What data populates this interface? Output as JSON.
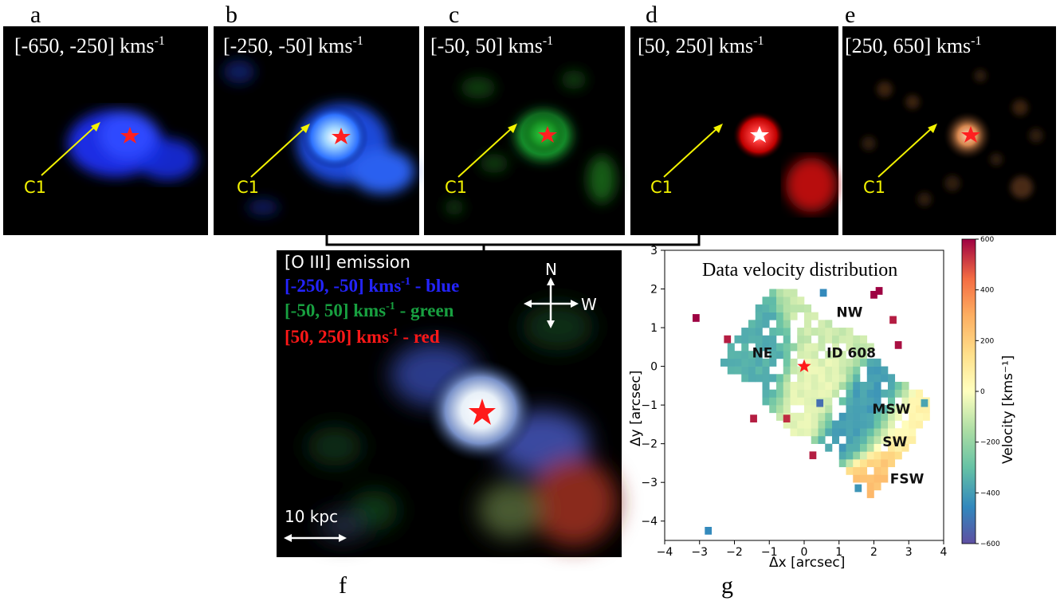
{
  "panels": [
    {
      "letter": "a",
      "range": "[-650, -250] kms",
      "unit_exp": "-1",
      "arrow_label": "C1",
      "color": "#1428ff"
    },
    {
      "letter": "b",
      "range": "[-250, -50] kms",
      "unit_exp": "-1",
      "arrow_label": "C1",
      "color": "#2a6cff"
    },
    {
      "letter": "c",
      "range": "[-50, 50] kms",
      "unit_exp": "-1",
      "arrow_label": "C1",
      "color": "#22b83a"
    },
    {
      "letter": "d",
      "range": "[50, 250] kms",
      "unit_exp": "-1",
      "arrow_label": "C1",
      "color": "#e81414"
    },
    {
      "letter": "e",
      "range": "[250, 650] kms",
      "unit_exp": "-1",
      "arrow_label": "C1",
      "color": "#d88850"
    }
  ],
  "composite": {
    "letter": "f",
    "title": "[O III] emission",
    "legend": [
      {
        "range": "[-250, -50] kms",
        "exp": "-1",
        "suffix": " - blue",
        "color": "#2424ff"
      },
      {
        "range": "[-50, 50] kms",
        "exp": "-1",
        "suffix": " - green",
        "color": "#18a040"
      },
      {
        "range": "[50, 250] kms",
        "exp": "-1",
        "suffix": " - red",
        "color": "#ff1818"
      }
    ],
    "compass": {
      "north": "N",
      "west": "W"
    },
    "scale_bar": "10 kpc"
  },
  "velocity_map": {
    "letter": "g",
    "title": "Data velocity distribution",
    "xlabel": "Δx [arcsec]",
    "ylabel": "Δy [arcsec]",
    "colorbar_label": "Velocity [kms⁻¹]",
    "regions": [
      "NE",
      "NW",
      "ID 608",
      "MSW",
      "SW",
      "FSW"
    ]
  },
  "chart_data": {
    "type": "heatmap",
    "title": "Data velocity distribution",
    "xlabel": "Δx [arcsec]",
    "ylabel": "Δy [arcsec]",
    "xlim": [
      -4,
      4
    ],
    "ylim": [
      -4.5,
      3
    ],
    "xticks": [
      -4,
      -3,
      -2,
      -1,
      0,
      1,
      2,
      3,
      4
    ],
    "yticks": [
      -4,
      -3,
      -2,
      -1,
      0,
      1,
      2,
      3
    ],
    "colorbar": {
      "label": "Velocity [kms⁻¹]",
      "range": [
        -600,
        600
      ],
      "ticks": [
        -600,
        -400,
        -200,
        0,
        200,
        400,
        600
      ],
      "colormap": "Spectral_r"
    },
    "annotations": [
      {
        "text": "NE",
        "x": -1.2,
        "y": 0.35
      },
      {
        "text": "NW",
        "x": 1.3,
        "y": 1.4
      },
      {
        "text": "ID 608",
        "x": 1.35,
        "y": 0.35
      },
      {
        "text": "MSW",
        "x": 2.5,
        "y": -1.1
      },
      {
        "text": "SW",
        "x": 2.6,
        "y": -1.95
      },
      {
        "text": "FSW",
        "x": 2.95,
        "y": -2.9
      }
    ],
    "marker": {
      "label": "ID 608",
      "x": 0,
      "y": 0
    },
    "region_velocities": [
      {
        "region": "NE",
        "x": -1.2,
        "y": 0.2,
        "velocity": -350
      },
      {
        "region": "NW",
        "x": 0.6,
        "y": 1.0,
        "velocity": -100
      },
      {
        "region": "center",
        "x": 0.3,
        "y": -0.3,
        "velocity": -50
      },
      {
        "region": "MSW",
        "x": 1.8,
        "y": -1.2,
        "velocity": -400
      },
      {
        "region": "SW",
        "x": 2.8,
        "y": -1.8,
        "velocity": 50
      },
      {
        "region": "FSW",
        "x": 2.7,
        "y": -2.8,
        "velocity": 250
      }
    ]
  }
}
